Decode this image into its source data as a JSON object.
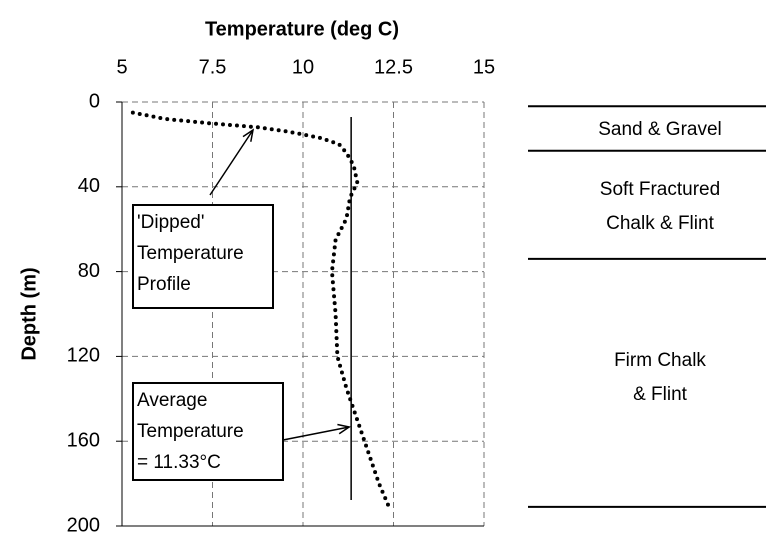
{
  "chart_data": {
    "type": "line",
    "xlabel": "Temperature (deg C)",
    "ylabel": "Depth (m)",
    "xlim": [
      5,
      15
    ],
    "xticks": [
      5,
      7.5,
      10,
      12.5,
      15
    ],
    "ylim": [
      0,
      200
    ],
    "yticks": [
      0,
      40,
      80,
      120,
      160,
      200
    ],
    "y_inverted": true,
    "grid": true,
    "series": [
      {
        "color": "#000000",
        "depth": [
          5,
          8,
          10,
          12,
          14,
          17,
          20,
          24,
          30,
          38,
          45,
          55,
          65,
          80,
          100,
          120,
          135,
          150,
          165,
          180,
          192
        ],
        "values": [
          5.3,
          6.2,
          7.4,
          8.8,
          9.6,
          10.5,
          11.0,
          11.2,
          11.4,
          11.5,
          11.3,
          11.2,
          10.9,
          10.8,
          10.9,
          10.95,
          11.2,
          11.5,
          11.8,
          12.1,
          12.4
        ]
      }
    ],
    "average_temperature": 11.33,
    "annotations": [
      {
        "lines": [
          "'Dipped'",
          "Temperature",
          "Profile"
        ]
      },
      {
        "lines": [
          "Average",
          "Temperature",
          "= 11.33°C"
        ]
      }
    ],
    "layers": [
      {
        "lines": [
          "Sand & Gravel"
        ]
      },
      {
        "lines": [
          "Soft Fractured",
          "Chalk & Flint"
        ]
      },
      {
        "lines": [
          "Firm Chalk",
          "& Flint"
        ]
      }
    ],
    "layer_boundaries": [
      2,
      23,
      74,
      191
    ]
  }
}
